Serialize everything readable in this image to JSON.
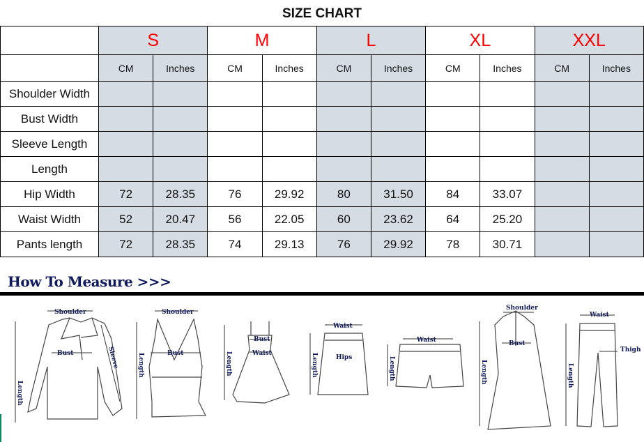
{
  "title": "SIZE CHART",
  "colors": {
    "size_label": "#ff0000",
    "shaded": "#d6dce4",
    "heading": "#0f1a5c"
  },
  "sizes": [
    "S",
    "M",
    "L",
    "XL",
    "XXL"
  ],
  "units": {
    "cm": "CM",
    "in": "Inches"
  },
  "rows": [
    {
      "label": "Shoulder Width",
      "values": [
        "",
        "",
        "",
        "",
        "",
        "",
        "",
        "",
        "",
        ""
      ]
    },
    {
      "label": "Bust Width",
      "values": [
        "",
        "",
        "",
        "",
        "",
        "",
        "",
        "",
        "",
        ""
      ]
    },
    {
      "label": "Sleeve Length",
      "values": [
        "",
        "",
        "",
        "",
        "",
        "",
        "",
        "",
        "",
        ""
      ]
    },
    {
      "label": "Length",
      "values": [
        "",
        "",
        "",
        "",
        "",
        "",
        "",
        "",
        "",
        ""
      ]
    },
    {
      "label": "Hip Width",
      "values": [
        "72",
        "28.35",
        "76",
        "29.92",
        "80",
        "31.50",
        "84",
        "33.07",
        "",
        ""
      ]
    },
    {
      "label": "Waist Width",
      "values": [
        "52",
        "20.47",
        "56",
        "22.05",
        "60",
        "23.62",
        "64",
        "25.20",
        "",
        ""
      ]
    },
    {
      "label": "Pants length",
      "values": [
        "72",
        "28.35",
        "74",
        "29.13",
        "76",
        "29.92",
        "78",
        "30.71",
        "",
        ""
      ]
    }
  ],
  "how_to_measure": {
    "heading": "How To Measure >>>",
    "labels": {
      "blouse": [
        "Shoulder",
        "Bust",
        "Length",
        "Sleeve"
      ],
      "tank": [
        "Shoulder",
        "Bust",
        "Length"
      ],
      "dress": [
        "Bust",
        "Waist",
        "Length"
      ],
      "skirt": [
        "Waist",
        "Hips",
        "Length"
      ],
      "shorts": [
        "Waist",
        "Length"
      ],
      "coat": [
        "Shoulder",
        "Bust",
        "Length"
      ],
      "pants": [
        "Waist",
        "Thigh",
        "Length"
      ]
    }
  }
}
